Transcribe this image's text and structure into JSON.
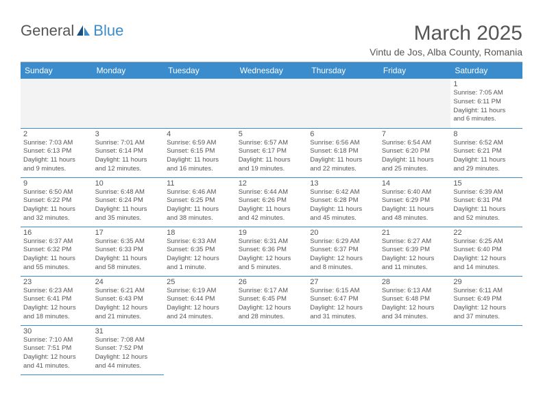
{
  "brand": {
    "general": "General",
    "blue": "Blue"
  },
  "title": "March 2025",
  "location": "Vintu de Jos, Alba County, Romania",
  "colors": {
    "header_bg": "#3a8ccc",
    "text": "#555555",
    "grid": "#3a8ccc",
    "empty_bg": "#f3f3f3"
  },
  "weekdays": [
    "Sunday",
    "Monday",
    "Tuesday",
    "Wednesday",
    "Thursday",
    "Friday",
    "Saturday"
  ],
  "weeks": [
    [
      {
        "empty": true
      },
      {
        "empty": true
      },
      {
        "empty": true
      },
      {
        "empty": true
      },
      {
        "empty": true
      },
      {
        "empty": true
      },
      {
        "num": "1",
        "sunrise": "Sunrise: 7:05 AM",
        "sunset": "Sunset: 6:11 PM",
        "daylight1": "Daylight: 11 hours",
        "daylight2": "and 6 minutes."
      }
    ],
    [
      {
        "num": "2",
        "sunrise": "Sunrise: 7:03 AM",
        "sunset": "Sunset: 6:13 PM",
        "daylight1": "Daylight: 11 hours",
        "daylight2": "and 9 minutes."
      },
      {
        "num": "3",
        "sunrise": "Sunrise: 7:01 AM",
        "sunset": "Sunset: 6:14 PM",
        "daylight1": "Daylight: 11 hours",
        "daylight2": "and 12 minutes."
      },
      {
        "num": "4",
        "sunrise": "Sunrise: 6:59 AM",
        "sunset": "Sunset: 6:15 PM",
        "daylight1": "Daylight: 11 hours",
        "daylight2": "and 16 minutes."
      },
      {
        "num": "5",
        "sunrise": "Sunrise: 6:57 AM",
        "sunset": "Sunset: 6:17 PM",
        "daylight1": "Daylight: 11 hours",
        "daylight2": "and 19 minutes."
      },
      {
        "num": "6",
        "sunrise": "Sunrise: 6:56 AM",
        "sunset": "Sunset: 6:18 PM",
        "daylight1": "Daylight: 11 hours",
        "daylight2": "and 22 minutes."
      },
      {
        "num": "7",
        "sunrise": "Sunrise: 6:54 AM",
        "sunset": "Sunset: 6:20 PM",
        "daylight1": "Daylight: 11 hours",
        "daylight2": "and 25 minutes."
      },
      {
        "num": "8",
        "sunrise": "Sunrise: 6:52 AM",
        "sunset": "Sunset: 6:21 PM",
        "daylight1": "Daylight: 11 hours",
        "daylight2": "and 29 minutes."
      }
    ],
    [
      {
        "num": "9",
        "sunrise": "Sunrise: 6:50 AM",
        "sunset": "Sunset: 6:22 PM",
        "daylight1": "Daylight: 11 hours",
        "daylight2": "and 32 minutes."
      },
      {
        "num": "10",
        "sunrise": "Sunrise: 6:48 AM",
        "sunset": "Sunset: 6:24 PM",
        "daylight1": "Daylight: 11 hours",
        "daylight2": "and 35 minutes."
      },
      {
        "num": "11",
        "sunrise": "Sunrise: 6:46 AM",
        "sunset": "Sunset: 6:25 PM",
        "daylight1": "Daylight: 11 hours",
        "daylight2": "and 38 minutes."
      },
      {
        "num": "12",
        "sunrise": "Sunrise: 6:44 AM",
        "sunset": "Sunset: 6:26 PM",
        "daylight1": "Daylight: 11 hours",
        "daylight2": "and 42 minutes."
      },
      {
        "num": "13",
        "sunrise": "Sunrise: 6:42 AM",
        "sunset": "Sunset: 6:28 PM",
        "daylight1": "Daylight: 11 hours",
        "daylight2": "and 45 minutes."
      },
      {
        "num": "14",
        "sunrise": "Sunrise: 6:40 AM",
        "sunset": "Sunset: 6:29 PM",
        "daylight1": "Daylight: 11 hours",
        "daylight2": "and 48 minutes."
      },
      {
        "num": "15",
        "sunrise": "Sunrise: 6:39 AM",
        "sunset": "Sunset: 6:31 PM",
        "daylight1": "Daylight: 11 hours",
        "daylight2": "and 52 minutes."
      }
    ],
    [
      {
        "num": "16",
        "sunrise": "Sunrise: 6:37 AM",
        "sunset": "Sunset: 6:32 PM",
        "daylight1": "Daylight: 11 hours",
        "daylight2": "and 55 minutes."
      },
      {
        "num": "17",
        "sunrise": "Sunrise: 6:35 AM",
        "sunset": "Sunset: 6:33 PM",
        "daylight1": "Daylight: 11 hours",
        "daylight2": "and 58 minutes."
      },
      {
        "num": "18",
        "sunrise": "Sunrise: 6:33 AM",
        "sunset": "Sunset: 6:35 PM",
        "daylight1": "Daylight: 12 hours",
        "daylight2": "and 1 minute."
      },
      {
        "num": "19",
        "sunrise": "Sunrise: 6:31 AM",
        "sunset": "Sunset: 6:36 PM",
        "daylight1": "Daylight: 12 hours",
        "daylight2": "and 5 minutes."
      },
      {
        "num": "20",
        "sunrise": "Sunrise: 6:29 AM",
        "sunset": "Sunset: 6:37 PM",
        "daylight1": "Daylight: 12 hours",
        "daylight2": "and 8 minutes."
      },
      {
        "num": "21",
        "sunrise": "Sunrise: 6:27 AM",
        "sunset": "Sunset: 6:39 PM",
        "daylight1": "Daylight: 12 hours",
        "daylight2": "and 11 minutes."
      },
      {
        "num": "22",
        "sunrise": "Sunrise: 6:25 AM",
        "sunset": "Sunset: 6:40 PM",
        "daylight1": "Daylight: 12 hours",
        "daylight2": "and 14 minutes."
      }
    ],
    [
      {
        "num": "23",
        "sunrise": "Sunrise: 6:23 AM",
        "sunset": "Sunset: 6:41 PM",
        "daylight1": "Daylight: 12 hours",
        "daylight2": "and 18 minutes."
      },
      {
        "num": "24",
        "sunrise": "Sunrise: 6:21 AM",
        "sunset": "Sunset: 6:43 PM",
        "daylight1": "Daylight: 12 hours",
        "daylight2": "and 21 minutes."
      },
      {
        "num": "25",
        "sunrise": "Sunrise: 6:19 AM",
        "sunset": "Sunset: 6:44 PM",
        "daylight1": "Daylight: 12 hours",
        "daylight2": "and 24 minutes."
      },
      {
        "num": "26",
        "sunrise": "Sunrise: 6:17 AM",
        "sunset": "Sunset: 6:45 PM",
        "daylight1": "Daylight: 12 hours",
        "daylight2": "and 28 minutes."
      },
      {
        "num": "27",
        "sunrise": "Sunrise: 6:15 AM",
        "sunset": "Sunset: 6:47 PM",
        "daylight1": "Daylight: 12 hours",
        "daylight2": "and 31 minutes."
      },
      {
        "num": "28",
        "sunrise": "Sunrise: 6:13 AM",
        "sunset": "Sunset: 6:48 PM",
        "daylight1": "Daylight: 12 hours",
        "daylight2": "and 34 minutes."
      },
      {
        "num": "29",
        "sunrise": "Sunrise: 6:11 AM",
        "sunset": "Sunset: 6:49 PM",
        "daylight1": "Daylight: 12 hours",
        "daylight2": "and 37 minutes."
      }
    ],
    [
      {
        "num": "30",
        "sunrise": "Sunrise: 7:10 AM",
        "sunset": "Sunset: 7:51 PM",
        "daylight1": "Daylight: 12 hours",
        "daylight2": "and 41 minutes."
      },
      {
        "num": "31",
        "sunrise": "Sunrise: 7:08 AM",
        "sunset": "Sunset: 7:52 PM",
        "daylight1": "Daylight: 12 hours",
        "daylight2": "and 44 minutes."
      },
      {
        "empty": true,
        "noborder": true
      },
      {
        "empty": true,
        "noborder": true
      },
      {
        "empty": true,
        "noborder": true
      },
      {
        "empty": true,
        "noborder": true
      },
      {
        "empty": true,
        "noborder": true
      }
    ]
  ]
}
